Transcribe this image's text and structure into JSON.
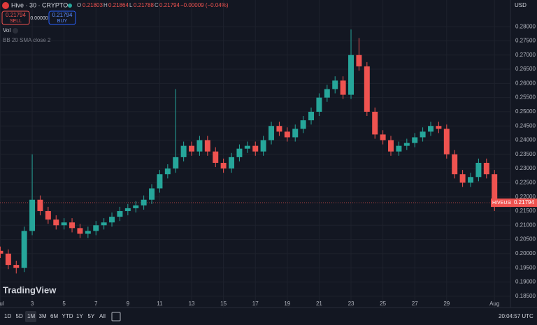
{
  "header": {
    "symbol": "Hive · 30 · CRYPTO",
    "o_label": "O",
    "o": "0.21803",
    "h_label": "H",
    "h": "0.21864",
    "l_label": "L",
    "l": "0.21788",
    "c_label": "C",
    "c": "0.21794",
    "change": "−0.00009 (−0.04%)",
    "sell_price": "0.21794",
    "sell": "SELL",
    "spread": "0.00000",
    "buy_price": "0.21794",
    "buy": "BUY",
    "vol": "Vol",
    "indicator": "BB 20 SMA close 2",
    "currency": "USD"
  },
  "chart_data": {
    "type": "candlestick",
    "x": [
      1,
      1.5,
      2,
      2.5,
      3,
      3.5,
      4,
      4.5,
      5,
      5.5,
      6,
      6.5,
      7,
      7.5,
      8,
      8.5,
      9,
      9.5,
      10,
      10.5,
      11,
      11.5,
      12,
      12.5,
      13,
      13.5,
      14,
      14.5,
      15,
      15.5,
      16,
      16.5,
      17,
      17.5,
      18,
      18.5,
      19,
      19.5,
      20,
      20.5,
      21,
      21.5,
      22,
      22.5,
      23,
      23.5,
      24,
      24.5,
      25,
      25.5,
      26,
      26.5,
      27,
      27.5,
      28,
      28.5,
      29,
      29.5,
      30,
      30.5,
      31,
      31.5,
      32
    ],
    "open": [
      0.201,
      0.2,
      0.196,
      0.195,
      0.208,
      0.219,
      0.215,
      0.212,
      0.21,
      0.211,
      0.209,
      0.207,
      0.208,
      0.21,
      0.211,
      0.213,
      0.215,
      0.216,
      0.217,
      0.219,
      0.223,
      0.228,
      0.23,
      0.234,
      0.238,
      0.236,
      0.24,
      0.236,
      0.232,
      0.23,
      0.234,
      0.237,
      0.238,
      0.236,
      0.24,
      0.245,
      0.243,
      0.241,
      0.244,
      0.247,
      0.25,
      0.255,
      0.258,
      0.261,
      0.256,
      0.27,
      0.266,
      0.25,
      0.242,
      0.24,
      0.236,
      0.238,
      0.239,
      0.241,
      0.243,
      0.245,
      0.244,
      0.235,
      0.228,
      0.225,
      0.227,
      0.232,
      0.228
    ],
    "high": [
      0.2025,
      0.2015,
      0.1975,
      0.2095,
      0.235,
      0.2205,
      0.2165,
      0.2135,
      0.2125,
      0.2125,
      0.2105,
      0.2095,
      0.2115,
      0.2125,
      0.2145,
      0.2165,
      0.2175,
      0.2185,
      0.2205,
      0.2245,
      0.2295,
      0.2315,
      0.258,
      0.2395,
      0.2395,
      0.2415,
      0.2415,
      0.2375,
      0.2335,
      0.2355,
      0.2385,
      0.2395,
      0.2395,
      0.2415,
      0.2465,
      0.2465,
      0.2445,
      0.2455,
      0.2485,
      0.2515,
      0.2565,
      0.2595,
      0.2625,
      0.2625,
      0.279,
      0.276,
      0.2675,
      0.2515,
      0.2435,
      0.2415,
      0.2395,
      0.2405,
      0.2425,
      0.2445,
      0.2465,
      0.2465,
      0.2455,
      0.2365,
      0.2295,
      0.2285,
      0.2335,
      0.2335,
      0.2295
    ],
    "low": [
      0.1985,
      0.1945,
      0.193,
      0.1935,
      0.2065,
      0.2135,
      0.2105,
      0.2085,
      0.2085,
      0.2075,
      0.2055,
      0.2055,
      0.2065,
      0.2085,
      0.2095,
      0.2115,
      0.2135,
      0.2145,
      0.2155,
      0.2175,
      0.2215,
      0.2265,
      0.2285,
      0.2325,
      0.2345,
      0.2345,
      0.2345,
      0.2305,
      0.2285,
      0.2285,
      0.2325,
      0.2355,
      0.2345,
      0.2345,
      0.2385,
      0.2415,
      0.2395,
      0.2395,
      0.2425,
      0.2455,
      0.2485,
      0.2535,
      0.2565,
      0.2545,
      0.2545,
      0.2645,
      0.2485,
      0.2405,
      0.2385,
      0.2345,
      0.2345,
      0.2365,
      0.2375,
      0.2395,
      0.2415,
      0.2425,
      0.2335,
      0.2265,
      0.2235,
      0.2235,
      0.2255,
      0.2265,
      0.215
    ],
    "close": [
      0.2,
      0.196,
      0.195,
      0.208,
      0.219,
      0.215,
      0.212,
      0.21,
      0.211,
      0.209,
      0.207,
      0.208,
      0.21,
      0.211,
      0.213,
      0.215,
      0.216,
      0.217,
      0.219,
      0.223,
      0.228,
      0.23,
      0.234,
      0.238,
      0.236,
      0.24,
      0.236,
      0.232,
      0.23,
      0.234,
      0.237,
      0.238,
      0.236,
      0.24,
      0.245,
      0.243,
      0.241,
      0.244,
      0.247,
      0.25,
      0.255,
      0.258,
      0.261,
      0.256,
      0.27,
      0.266,
      0.25,
      0.242,
      0.24,
      0.236,
      0.238,
      0.239,
      0.241,
      0.243,
      0.245,
      0.244,
      0.235,
      0.228,
      0.225,
      0.227,
      0.232,
      0.228,
      0.2179
    ],
    "up_color": "#26a69a",
    "down_color": "#ef5350",
    "xlim": [
      0.98,
      33.0
    ],
    "ylim": [
      0.181,
      0.2894
    ],
    "xticks": [
      {
        "value": 1,
        "label": "Jul"
      },
      3,
      5,
      7,
      9,
      11,
      13,
      15,
      17,
      19,
      21,
      23,
      25,
      27,
      29,
      {
        "value": 32,
        "label": "Aug"
      }
    ],
    "yticks": [
      {
        "value": 0.185,
        "label": "0.18500"
      },
      {
        "value": 0.19,
        "label": "0.19000"
      },
      {
        "value": 0.195,
        "label": "0.19500"
      },
      {
        "value": 0.2,
        "label": "0.20000"
      },
      {
        "value": 0.205,
        "label": "0.20500"
      },
      {
        "value": 0.21,
        "label": "0.21000"
      },
      {
        "value": 0.215,
        "label": "0.21500"
      },
      {
        "value": 0.22,
        "label": "0.22000"
      },
      {
        "value": 0.225,
        "label": "0.22500"
      },
      {
        "value": 0.23,
        "label": "0.23000"
      },
      {
        "value": 0.235,
        "label": "0.23500"
      },
      {
        "value": 0.24,
        "label": "0.24000"
      },
      {
        "value": 0.245,
        "label": "0.24500"
      },
      {
        "value": 0.25,
        "label": "0.25000"
      },
      {
        "value": 0.255,
        "label": "0.25500"
      },
      {
        "value": 0.26,
        "label": "0.26000"
      },
      {
        "value": 0.265,
        "label": "0.26500"
      },
      {
        "value": 0.27,
        "label": "0.27000"
      },
      {
        "value": 0.275,
        "label": "0.27500"
      },
      {
        "value": 0.28,
        "label": "0.28000"
      }
    ],
    "grid": true,
    "symbol_label": "HIVEUSD",
    "last_price": 0.21794,
    "watermark": "TradingView"
  },
  "footer": {
    "ranges": [
      "1D",
      "5D",
      "1M",
      "3M",
      "6M",
      "YTD",
      "1Y",
      "5Y",
      "All"
    ],
    "time": "20:04:57 UTC"
  }
}
